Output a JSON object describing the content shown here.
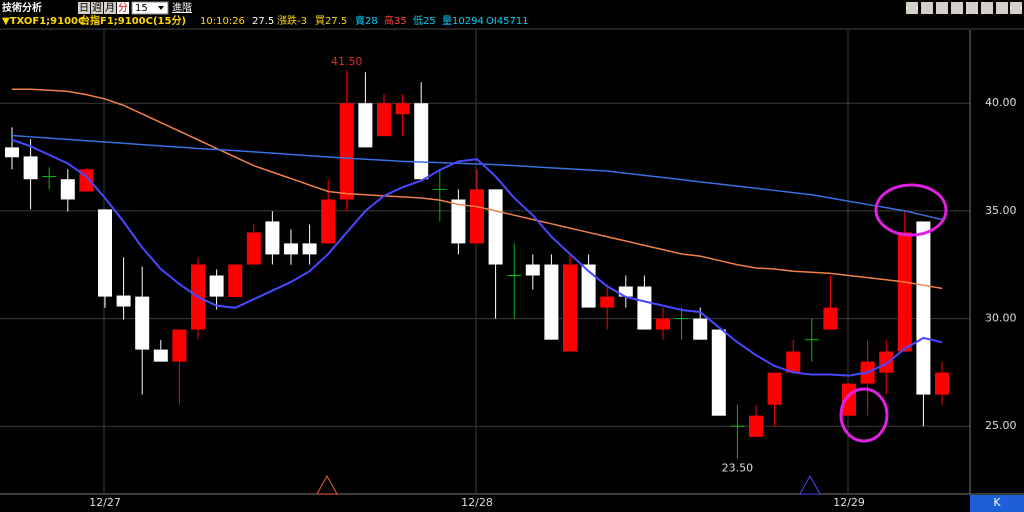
{
  "header": {
    "title": "技術分析",
    "periods": [
      "日",
      "週",
      "月",
      "分"
    ],
    "interval": "15",
    "advanced": "進階",
    "symbol": "▼TXOF1;9100C",
    "name": "台指F1;9100C(15分)",
    "time": "10:10:26",
    "price": "27.5",
    "change": "漲跌-3",
    "bid": "買27.5",
    "ask": "賣28",
    "high": "高35",
    "low": "低25",
    "volume": "量10294",
    "oi": "OI45711",
    "mode": "K"
  },
  "chart_data": {
    "type": "candlestick",
    "categories": [
      null,
      null,
      null,
      null,
      null,
      "12/27",
      null,
      null,
      null,
      null,
      null,
      null,
      null,
      null,
      null,
      null,
      null,
      null,
      null,
      null,
      null,
      null,
      null,
      null,
      null,
      "12/28",
      null,
      null,
      null,
      null,
      null,
      null,
      null,
      null,
      null,
      null,
      null,
      null,
      null,
      null,
      null,
      null,
      null,
      null,
      null,
      "12/29",
      null,
      null,
      null,
      null,
      null
    ],
    "open": [
      37.95,
      37.53,
      36.6,
      36.47,
      35.9,
      35.07,
      31.07,
      31.02,
      28.56,
      28.0,
      29.49,
      32.0,
      31.0,
      32.51,
      34.51,
      33.49,
      33.49,
      33.49,
      35.53,
      40.0,
      38.47,
      39.49,
      40.0,
      36.0,
      35.53,
      33.49,
      36.0,
      32.0,
      32.51,
      32.51,
      28.47,
      32.51,
      30.51,
      31.49,
      31.49,
      29.49,
      30.0,
      30.0,
      29.49,
      25.0,
      24.51,
      26.0,
      27.49,
      29.02,
      29.49,
      25.49,
      26.98,
      27.49,
      28.47,
      34.51,
      26.47
    ],
    "high": [
      38.88,
      38.33,
      37.02,
      36.93,
      37.0,
      35.07,
      32.84,
      32.42,
      29.0,
      29.49,
      32.84,
      32.28,
      32.51,
      34.37,
      34.98,
      34.14,
      34.37,
      36.47,
      41.5,
      41.44,
      40.42,
      40.42,
      40.98,
      36.93,
      36.0,
      36.93,
      36.0,
      33.49,
      32.98,
      32.98,
      32.98,
      32.98,
      31.58,
      32.0,
      32.0,
      30.51,
      30.51,
      30.51,
      29.49,
      26.0,
      26.0,
      27.49,
      29.02,
      30.0,
      32.0,
      27.0,
      29.02,
      29.02,
      34.98,
      34.51,
      28.0
    ],
    "low": [
      36.93,
      35.07,
      36.0,
      34.98,
      35.9,
      30.5,
      29.95,
      26.47,
      28.0,
      26.0,
      29.02,
      30.42,
      31.0,
      32.5,
      32.51,
      32.5,
      32.51,
      33.49,
      34.98,
      37.95,
      38.47,
      38.47,
      36.47,
      34.51,
      32.98,
      33.49,
      30.0,
      30.0,
      31.35,
      29.02,
      28.47,
      30.51,
      29.49,
      30.51,
      29.49,
      29.02,
      29.02,
      29.02,
      25.49,
      23.5,
      24.51,
      25.0,
      27.49,
      28.0,
      29.49,
      25.49,
      25.49,
      26.47,
      28.47,
      25.0,
      26.0
    ],
    "close": [
      37.49,
      36.47,
      36.6,
      35.53,
      36.93,
      31.02,
      30.56,
      28.56,
      28.0,
      29.49,
      32.51,
      31.02,
      32.51,
      34.0,
      32.98,
      32.98,
      32.98,
      35.53,
      40.0,
      37.95,
      40.0,
      40.0,
      36.47,
      36.0,
      33.49,
      36.0,
      32.51,
      32.0,
      32.0,
      29.02,
      32.51,
      30.51,
      31.02,
      31.02,
      29.49,
      30.0,
      30.0,
      29.02,
      25.49,
      25.0,
      25.49,
      27.49,
      28.47,
      29.02,
      30.51,
      26.98,
      28.0,
      28.47,
      34.0,
      26.47,
      27.49
    ],
    "up_color": "#ff0000",
    "down_color": "#ffffff",
    "flat_color": "#00c000",
    "series": [
      {
        "color": "#f0804a",
        "values": [
          40.65,
          40.65,
          40.6,
          40.55,
          40.4,
          40.2,
          39.9,
          39.5,
          39.1,
          38.7,
          38.3,
          37.9,
          37.5,
          37.1,
          36.8,
          36.5,
          36.2,
          35.9,
          35.8,
          35.75,
          35.7,
          35.65,
          35.6,
          35.5,
          35.3,
          35.2,
          35.0,
          34.8,
          34.6,
          34.4,
          34.2,
          34.0,
          33.8,
          33.6,
          33.4,
          33.2,
          33.0,
          32.9,
          32.7,
          32.5,
          32.35,
          32.3,
          32.2,
          32.15,
          32.1,
          32.0,
          31.9,
          31.8,
          31.7,
          31.55,
          31.4
        ]
      },
      {
        "color": "#3a6fe0",
        "values": [
          38.5,
          38.44,
          38.38,
          38.32,
          38.26,
          38.2,
          38.14,
          38.08,
          38.02,
          37.96,
          37.9,
          37.85,
          37.8,
          37.74,
          37.68,
          37.62,
          37.56,
          37.5,
          37.45,
          37.4,
          37.35,
          37.3,
          37.27,
          37.24,
          37.21,
          37.18,
          37.15,
          37.1,
          37.05,
          37.0,
          36.95,
          36.9,
          36.85,
          36.75,
          36.65,
          36.55,
          36.45,
          36.35,
          36.25,
          36.15,
          36.05,
          35.95,
          35.85,
          35.75,
          35.6,
          35.45,
          35.3,
          35.15,
          35.0,
          34.8,
          34.6
        ]
      },
      {
        "color": "#4848ff",
        "values": [
          38.3,
          38.0,
          37.6,
          37.2,
          36.6,
          35.6,
          34.5,
          33.3,
          32.3,
          31.6,
          31.0,
          30.6,
          30.5,
          30.9,
          31.3,
          31.7,
          32.2,
          33.0,
          34.0,
          35.0,
          35.7,
          36.1,
          36.4,
          36.9,
          37.3,
          37.4,
          36.6,
          35.6,
          34.8,
          33.8,
          33.0,
          32.2,
          31.5,
          31.0,
          30.8,
          30.6,
          30.4,
          30.3,
          29.6,
          28.9,
          28.3,
          27.8,
          27.5,
          27.4,
          27.4,
          27.35,
          27.5,
          27.9,
          28.6,
          29.1,
          28.9
        ]
      }
    ],
    "max_label": {
      "value": 41.5,
      "label": "41.50"
    },
    "min_label": {
      "value": 23.5,
      "label": "23.50"
    },
    "ylim": [
      21.9,
      43.4
    ],
    "yticks": [
      {
        "value": 25,
        "label": "25.00"
      },
      {
        "value": 30,
        "label": "30.00"
      },
      {
        "value": 35,
        "label": "35.00"
      },
      {
        "value": 40,
        "label": "40.00"
      }
    ],
    "grid": true
  }
}
